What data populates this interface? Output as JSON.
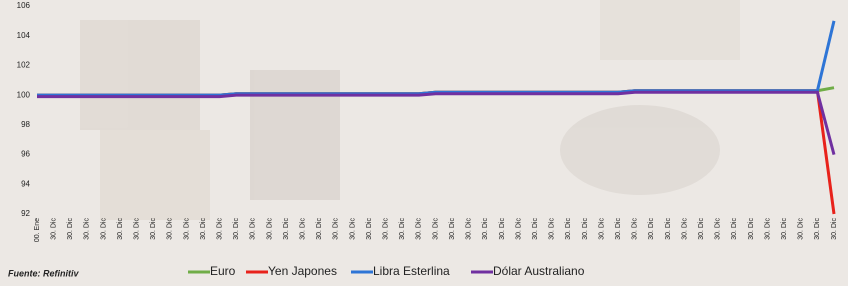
{
  "chart_data": {
    "type": "line",
    "categories": [
      "00. Ene",
      "30. Dic",
      "30. Dic",
      "30. Dic",
      "30. Dic",
      "30. Dic",
      "30. Dic",
      "30. Dic",
      "30. Dic",
      "30. Dic",
      "30. Dic",
      "30. Dic",
      "30. Dic",
      "30. Dic",
      "30. Dic",
      "30. Dic",
      "30. Dic",
      "30. Dic",
      "30. Dic",
      "30. Dic",
      "30. Dic",
      "30. Dic",
      "30. Dic",
      "30. Dic",
      "30. Dic",
      "30. Dic",
      "30. Dic",
      "30. Dic",
      "30. Dic",
      "30. Dic",
      "30. Dic",
      "30. Dic",
      "30. Dic",
      "30. Dic",
      "30. Dic",
      "30. Dic",
      "30. Dic",
      "30. Dic",
      "30. Dic",
      "30. Dic",
      "30. Dic",
      "30. Dic",
      "30. Dic",
      "30. Dic",
      "30. Dic",
      "30. Dic",
      "30. Dic",
      "30. Dic",
      "30. Dic"
    ],
    "series": [
      {
        "name": "Euro",
        "color": "#70ad47",
        "values": [
          100,
          100,
          100,
          100,
          100,
          100,
          100,
          100,
          100,
          100,
          100,
          100,
          100.1,
          100.1,
          100.1,
          100.1,
          100.1,
          100.1,
          100.1,
          100.1,
          100.1,
          100.1,
          100.1,
          100.1,
          100.2,
          100.2,
          100.2,
          100.2,
          100.2,
          100.2,
          100.2,
          100.2,
          100.2,
          100.2,
          100.2,
          100.2,
          100.3,
          100.3,
          100.3,
          100.3,
          100.3,
          100.3,
          100.3,
          100.3,
          100.3,
          100.3,
          100.3,
          100.3,
          100.5
        ]
      },
      {
        "name": "Yen Japones",
        "color": "#e8221b",
        "values": [
          100,
          100,
          100,
          100,
          100,
          100,
          100,
          100,
          100,
          100,
          100,
          100,
          100.1,
          100.1,
          100.1,
          100.1,
          100.1,
          100.1,
          100.1,
          100.1,
          100.1,
          100.1,
          100.1,
          100.1,
          100.2,
          100.2,
          100.2,
          100.2,
          100.2,
          100.2,
          100.2,
          100.2,
          100.2,
          100.2,
          100.2,
          100.2,
          100.3,
          100.3,
          100.3,
          100.3,
          100.3,
          100.3,
          100.3,
          100.3,
          100.3,
          100.3,
          100.3,
          100.3,
          92
        ]
      },
      {
        "name": "Libra Esterlina",
        "color": "#2e75d6",
        "values": [
          100,
          100,
          100,
          100,
          100,
          100,
          100,
          100,
          100,
          100,
          100,
          100,
          100.1,
          100.1,
          100.1,
          100.1,
          100.1,
          100.1,
          100.1,
          100.1,
          100.1,
          100.1,
          100.1,
          100.1,
          100.2,
          100.2,
          100.2,
          100.2,
          100.2,
          100.2,
          100.2,
          100.2,
          100.2,
          100.2,
          100.2,
          100.2,
          100.3,
          100.3,
          100.3,
          100.3,
          100.3,
          100.3,
          100.3,
          100.3,
          100.3,
          100.3,
          100.3,
          100.3,
          105
        ]
      },
      {
        "name": "Dólar Australiano",
        "color": "#7030a0",
        "values": [
          99.9,
          99.9,
          99.9,
          99.9,
          99.9,
          99.9,
          99.9,
          99.9,
          99.9,
          99.9,
          99.9,
          99.9,
          100,
          100,
          100,
          100,
          100,
          100,
          100,
          100,
          100,
          100,
          100,
          100,
          100.1,
          100.1,
          100.1,
          100.1,
          100.1,
          100.1,
          100.1,
          100.1,
          100.1,
          100.1,
          100.1,
          100.1,
          100.2,
          100.2,
          100.2,
          100.2,
          100.2,
          100.2,
          100.2,
          100.2,
          100.2,
          100.2,
          100.2,
          100.2,
          96
        ]
      }
    ],
    "ylim": [
      92,
      106
    ],
    "yticks": [
      92,
      94,
      96,
      98,
      100,
      102,
      104,
      106
    ],
    "source": "Fuente: Refinitiv"
  }
}
